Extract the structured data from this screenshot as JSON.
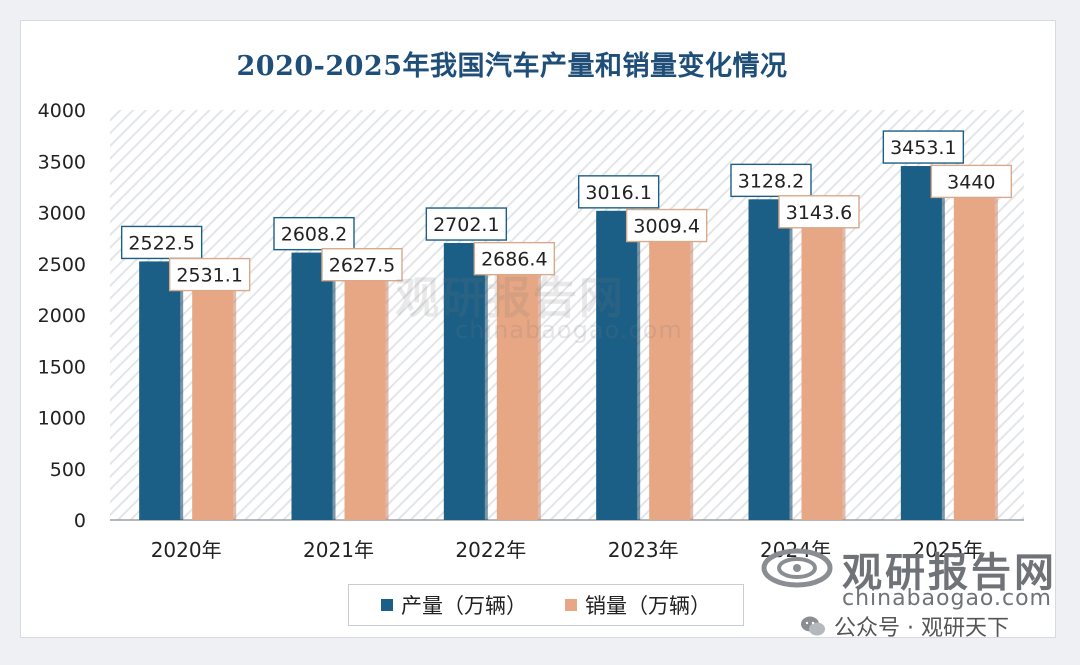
{
  "chart_data": {
    "type": "bar",
    "title": "2020-2025年我国汽车产量和销量变化情况",
    "categories": [
      "2020年",
      "2021年",
      "2022年",
      "2023年",
      "2024年",
      "2025年"
    ],
    "series": [
      {
        "name": "产量（万辆）",
        "values": [
          2522.5,
          2608.2,
          2702.1,
          3016.1,
          3128.2,
          3453.1
        ],
        "value_labels": [
          "2522.5",
          "2608.2",
          "2702.1",
          "3016.1",
          "3128.2",
          "3453.1"
        ],
        "color": "#1b5f86"
      },
      {
        "name": "销量（万辆）",
        "values": [
          2531.1,
          2627.5,
          2686.4,
          3009.4,
          3143.6,
          3440
        ],
        "value_labels": [
          "2531.1",
          "2627.5",
          "2686.4",
          "3009.4",
          "3143.6",
          "3440"
        ],
        "color": "#e8a784"
      }
    ],
    "ylim": [
      0,
      4000
    ],
    "yticks": [
      "0",
      "500",
      "1000",
      "1500",
      "2000",
      "2500",
      "3000",
      "3500",
      "4000"
    ],
    "xlabel": "",
    "ylabel": "",
    "legend_position": "bottom",
    "grid": false
  },
  "watermark": {
    "center_text": "观研报告网",
    "center_url": "chinabaogao.com"
  },
  "brand": {
    "name": "观研报告网",
    "url": "chinabaogao.com",
    "account": "公众号 · 观研天下"
  }
}
